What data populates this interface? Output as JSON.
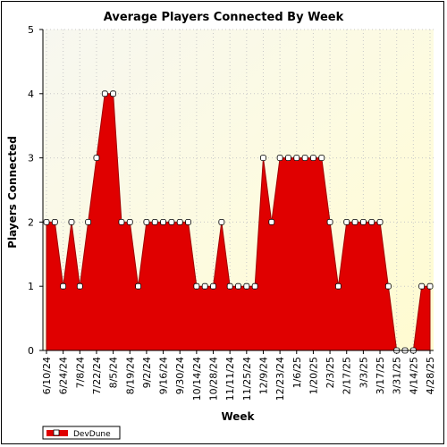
{
  "chart_data": {
    "type": "area",
    "title": "Average Players Connected By Week",
    "xlabel": "Week",
    "ylabel": "Players Connected",
    "ylim": [
      0,
      5
    ],
    "yticks": [
      0,
      1,
      2,
      3,
      4,
      5
    ],
    "x_tick_labels": [
      "6/10/24",
      "6/24/24",
      "7/8/24",
      "7/22/24",
      "8/5/24",
      "8/19/24",
      "9/2/24",
      "9/16/24",
      "9/30/24",
      "10/14/24",
      "10/28/24",
      "11/11/24",
      "11/25/24",
      "12/9/24",
      "12/23/24",
      "1/6/25",
      "1/20/25",
      "2/3/25",
      "2/17/25",
      "3/3/25",
      "3/17/25",
      "3/31/25",
      "4/14/25",
      "4/28/25"
    ],
    "series": [
      {
        "name": "DevDune",
        "color": "#e00000",
        "points": [
          {
            "x": "6/10/24",
            "y": 2
          },
          {
            "x": "6/17/24",
            "y": 2
          },
          {
            "x": "6/24/24",
            "y": 1
          },
          {
            "x": "7/1/24",
            "y": 2
          },
          {
            "x": "7/8/24",
            "y": 1
          },
          {
            "x": "7/15/24",
            "y": 2
          },
          {
            "x": "7/22/24",
            "y": 3
          },
          {
            "x": "7/29/24",
            "y": 4
          },
          {
            "x": "8/5/24",
            "y": 4
          },
          {
            "x": "8/12/24",
            "y": 2
          },
          {
            "x": "8/19/24",
            "y": 2
          },
          {
            "x": "8/26/24",
            "y": 1
          },
          {
            "x": "9/2/24",
            "y": 2
          },
          {
            "x": "9/9/24",
            "y": 2
          },
          {
            "x": "9/16/24",
            "y": 2
          },
          {
            "x": "9/23/24",
            "y": 2
          },
          {
            "x": "9/30/24",
            "y": 2
          },
          {
            "x": "10/7/24",
            "y": 2
          },
          {
            "x": "10/14/24",
            "y": 1
          },
          {
            "x": "10/21/24",
            "y": 1
          },
          {
            "x": "10/28/24",
            "y": 1
          },
          {
            "x": "11/4/24",
            "y": 2
          },
          {
            "x": "11/11/24",
            "y": 1
          },
          {
            "x": "11/18/24",
            "y": 1
          },
          {
            "x": "11/25/24",
            "y": 1
          },
          {
            "x": "12/2/24",
            "y": 1
          },
          {
            "x": "12/9/24",
            "y": 3
          },
          {
            "x": "12/16/24",
            "y": 2
          },
          {
            "x": "12/23/24",
            "y": 3
          },
          {
            "x": "12/30/24",
            "y": 3
          },
          {
            "x": "1/6/25",
            "y": 3
          },
          {
            "x": "1/13/25",
            "y": 3
          },
          {
            "x": "1/20/25",
            "y": 3
          },
          {
            "x": "1/27/25",
            "y": 3
          },
          {
            "x": "2/3/25",
            "y": 2
          },
          {
            "x": "2/10/25",
            "y": 1
          },
          {
            "x": "2/17/25",
            "y": 2
          },
          {
            "x": "2/24/25",
            "y": 2
          },
          {
            "x": "3/3/25",
            "y": 2
          },
          {
            "x": "3/10/25",
            "y": 2
          },
          {
            "x": "3/17/25",
            "y": 2
          },
          {
            "x": "3/24/25",
            "y": 1
          },
          {
            "x": "3/31/25",
            "y": 0
          },
          {
            "x": "4/7/25",
            "y": 0
          },
          {
            "x": "4/14/25",
            "y": 0
          },
          {
            "x": "4/21/25",
            "y": 1
          },
          {
            "x": "4/28/25",
            "y": 1
          }
        ]
      }
    ],
    "grid": true,
    "legend": "bottom-left",
    "background": "gradient-light-yellow"
  }
}
